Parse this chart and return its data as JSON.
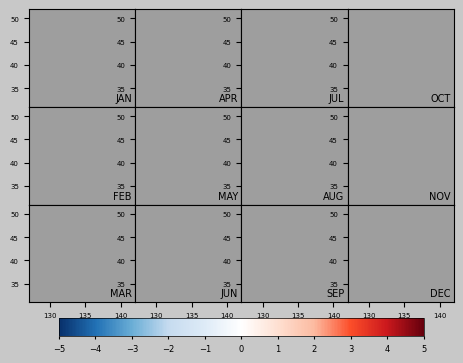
{
  "months": [
    "JAN",
    "APR",
    "JUL",
    "OCT",
    "FEB",
    "MAY",
    "AUG",
    "NOV",
    "MAR",
    "JUN",
    "SEP",
    "DEC"
  ],
  "month_order": [
    [
      "JAN",
      "APR",
      "JUL",
      "OCT"
    ],
    [
      "FEB",
      "MAY",
      "AUG",
      "NOV"
    ],
    [
      "MAR",
      "JUN",
      "SEP",
      "DEC"
    ]
  ],
  "lon_min": 127,
  "lon_max": 142,
  "lat_min": 31,
  "lat_max": 52,
  "cbar_min": -5,
  "cbar_max": 5,
  "cbar_ticks": [
    -5,
    -4,
    -3,
    -2,
    -1,
    0,
    1,
    2,
    3,
    4,
    5
  ],
  "background_color": "#9e9e9e",
  "land_color": "#d3d3d3",
  "fig_bg": "#e0e0e0",
  "title_fontsize": 7,
  "tick_fontsize": 5,
  "label_fontsize": 5,
  "cbar_fontsize": 6
}
